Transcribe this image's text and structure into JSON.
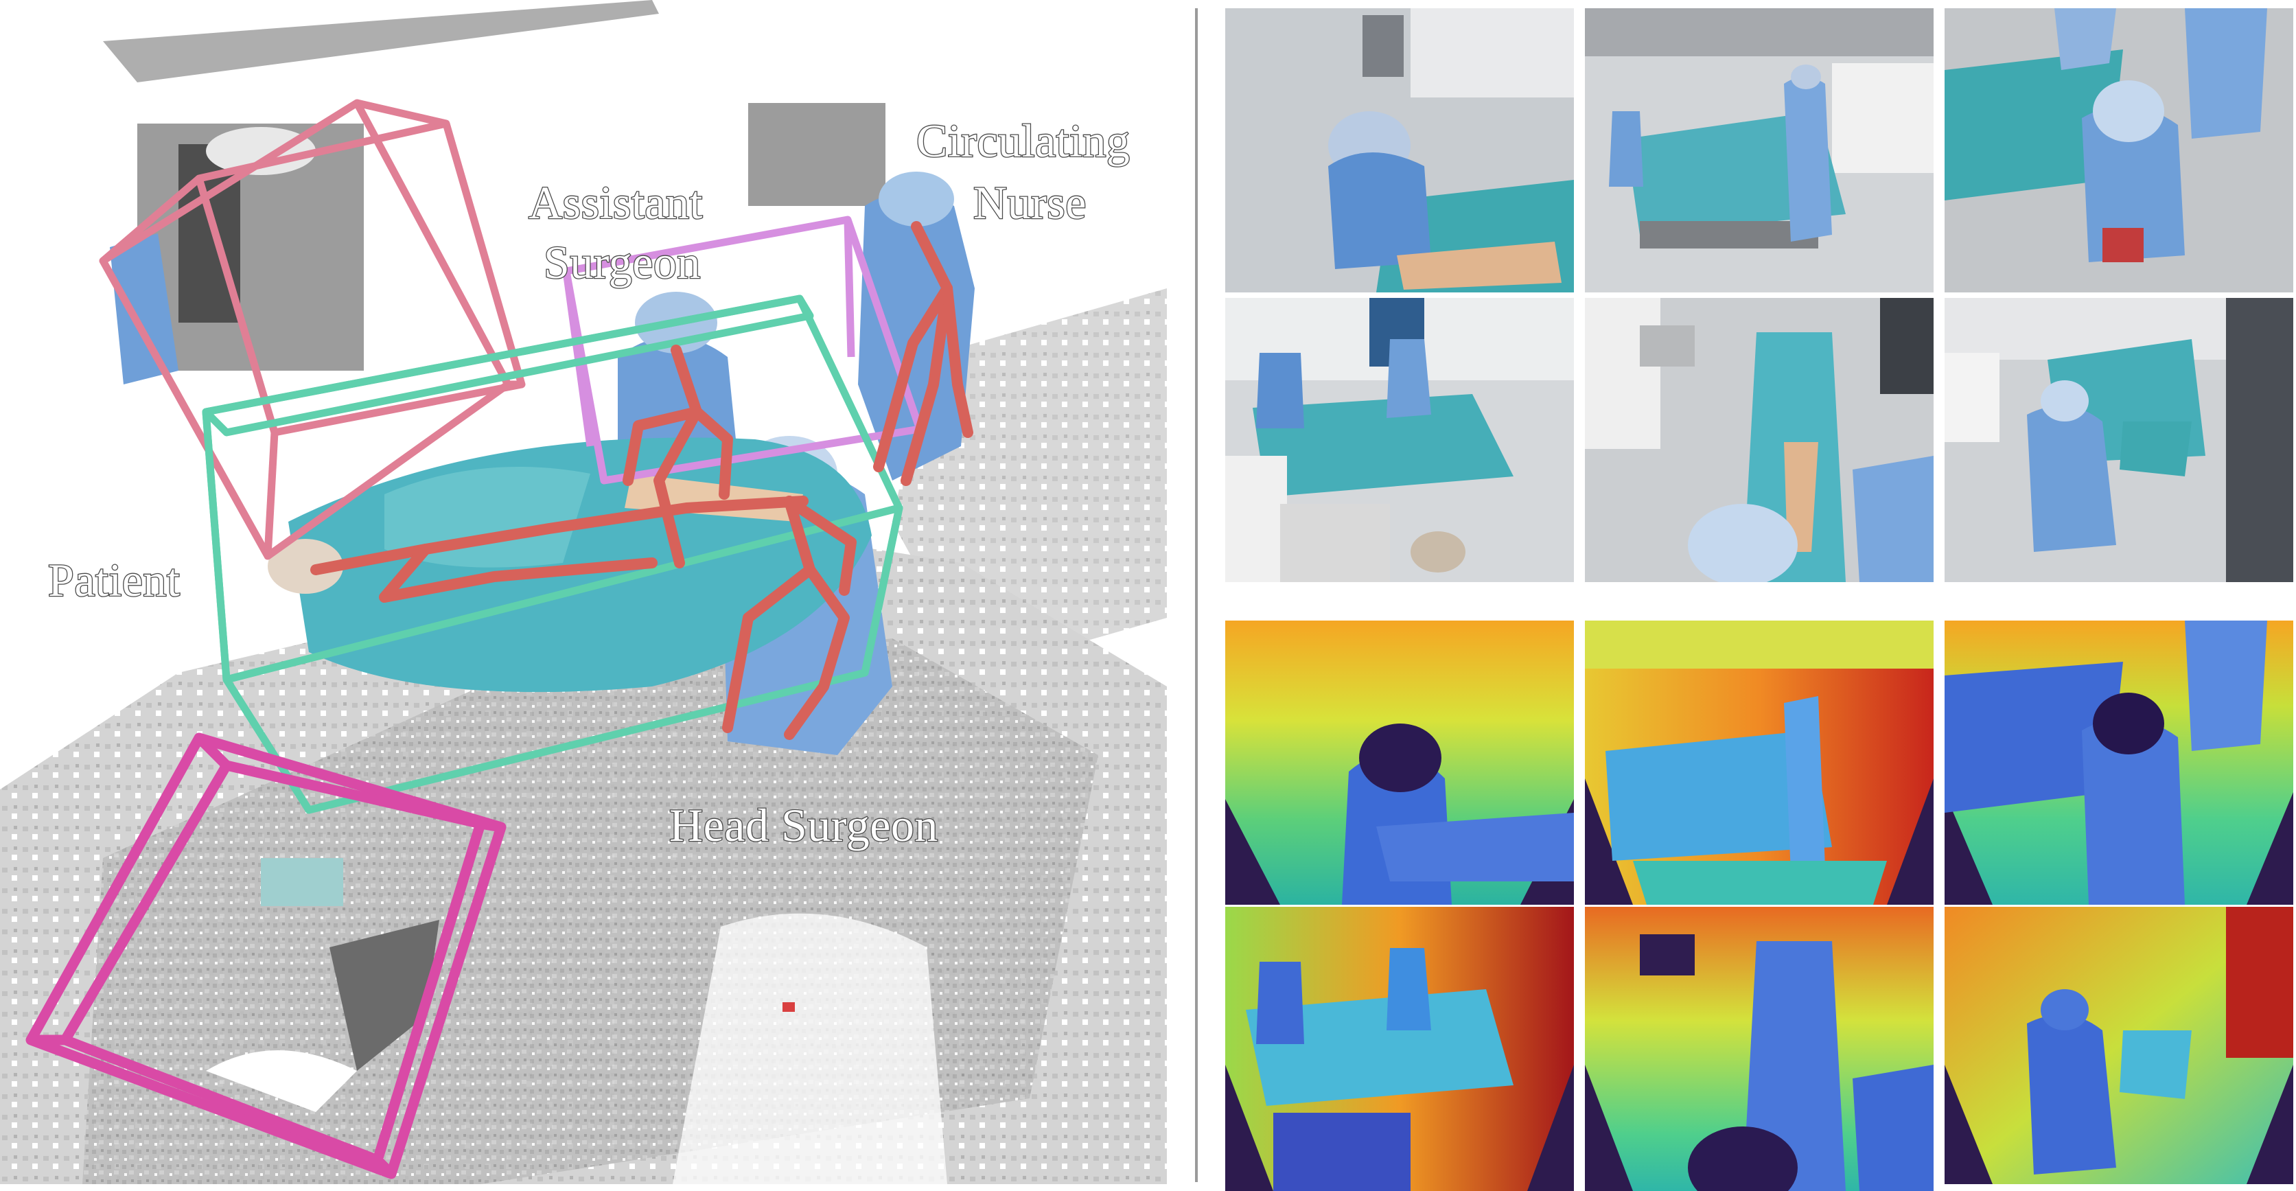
{
  "labels": {
    "assistant_line1": "Assistant",
    "assistant_line2": "Surgeon",
    "circulating_line1": "Circulating",
    "circulating_line2": "Nurse",
    "patient": "Patient",
    "head_surgeon": "Head Surgeon"
  },
  "colors": {
    "box_pink": "#e07f95",
    "box_lilac": "#d68fe0",
    "box_teal": "#5fd0ad",
    "box_magenta": "#d94aa6",
    "skeleton": "#d7625a",
    "scrubs": "#6f9fd8",
    "drape": "#4fb5c2",
    "floor": "#b8b8b8"
  },
  "rgb_views": [
    {
      "view": "top-down of seated surgeon near leg"
    },
    {
      "view": "wide view of operating table"
    },
    {
      "view": "top-down of staff at table"
    },
    {
      "view": "corner view with monitors"
    },
    {
      "view": "overhead of patient leg on table"
    },
    {
      "view": "corner view with equipment rack"
    }
  ],
  "depth_views": [
    {
      "view": "depth 1"
    },
    {
      "view": "depth 2"
    },
    {
      "view": "depth 3"
    },
    {
      "view": "depth 4"
    },
    {
      "view": "depth 5"
    },
    {
      "view": "depth 6"
    }
  ]
}
